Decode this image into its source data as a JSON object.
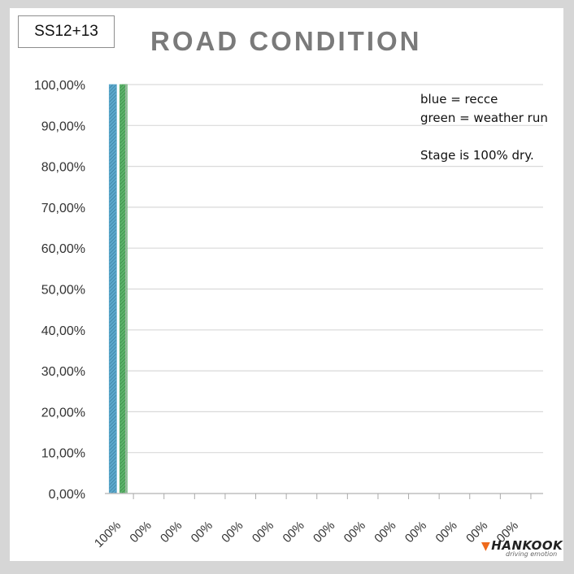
{
  "stage_label": "SS12+13",
  "colors": {
    "recce": "#5ba8cc",
    "weather_run": "#5cb36a",
    "grid": "#d9d9d9",
    "title": "#7a7a7a",
    "brand": "#ee6a1c"
  },
  "notes": {
    "line1": "blue = recce",
    "line2": "green = weather run",
    "line3": "Stage is 100% dry."
  },
  "logo": {
    "name": "HANKOOK",
    "tagline": "driving emotion",
    "icon": "hankook-wing-icon"
  },
  "chart_data": {
    "type": "bar",
    "title": "ROAD CONDITION",
    "xlabel": "",
    "ylabel": "",
    "ylim": [
      0,
      100
    ],
    "y_ticks": [
      "0,00%",
      "10,00%",
      "20,00%",
      "30,00%",
      "40,00%",
      "50,00%",
      "60,00%",
      "70,00%",
      "80,00%",
      "90,00%",
      "100,00%"
    ],
    "grid": true,
    "categories": [
      "100%",
      "00%",
      "00%",
      "00%",
      "00%",
      "00%",
      "00%",
      "00%",
      "00%",
      "00%",
      "00%",
      "00%",
      "00%",
      "00%"
    ],
    "series": [
      {
        "name": "recce",
        "values": [
          100,
          0,
          0,
          0,
          0,
          0,
          0,
          0,
          0,
          0,
          0,
          0,
          0,
          0
        ]
      },
      {
        "name": "weather run",
        "values": [
          100,
          0,
          0,
          0,
          0,
          0,
          0,
          0,
          0,
          0,
          0,
          0,
          0,
          0
        ]
      }
    ]
  }
}
